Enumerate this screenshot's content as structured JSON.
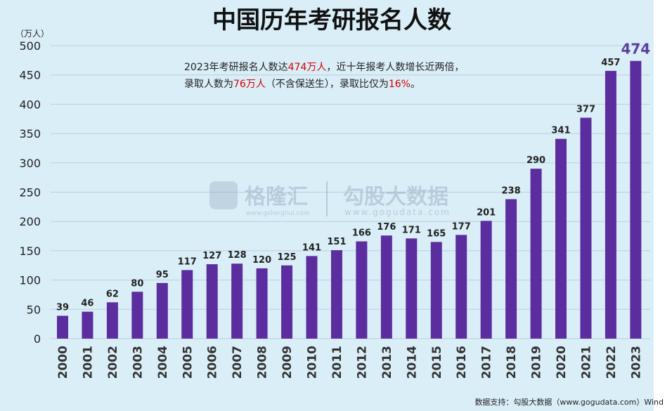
{
  "chart_data": {
    "type": "bar",
    "title": "中国历年考研报名人数",
    "unit_label": "（万人）",
    "categories": [
      "2000",
      "2001",
      "2002",
      "2003",
      "2004",
      "2005",
      "2006",
      "2007",
      "2008",
      "2009",
      "2010",
      "2011",
      "2012",
      "2013",
      "2014",
      "2015",
      "2016",
      "2017",
      "2018",
      "2019",
      "2020",
      "2021",
      "2022",
      "2023"
    ],
    "values": [
      39,
      46,
      62,
      80,
      95,
      117,
      127,
      128,
      120,
      125,
      141,
      151,
      166,
      176,
      171,
      165,
      177,
      201,
      238,
      290,
      341,
      377,
      457,
      474
    ],
    "ylim": [
      0,
      500
    ],
    "yticks": [
      0,
      50,
      100,
      150,
      200,
      250,
      300,
      350,
      400,
      450,
      500
    ],
    "grid": true,
    "bar_color": "#5b2d9e",
    "background_color": "#daeef8",
    "highlight_value_color": "#5a3fa0"
  },
  "annotation": {
    "line1_a": "2023年考研报名人数达",
    "line1_b": "474万人",
    "line1_c": "，近十年报考人数增长近两倍，",
    "line2_a": "录取人数为",
    "line2_b": "76万人",
    "line2_c": "（不含保送生），录取比仅为",
    "line2_d": "16%",
    "line2_e": "。",
    "highlight_color": "#d40000"
  },
  "watermark": {
    "brand1": "格隆汇",
    "brand1_url": "www.gelonghui.com",
    "brand2": "勾股大数据",
    "brand2_url": "www.gogudata.com"
  },
  "source": "数据支持：勾股大数据（www.gogudata.com）Wind"
}
